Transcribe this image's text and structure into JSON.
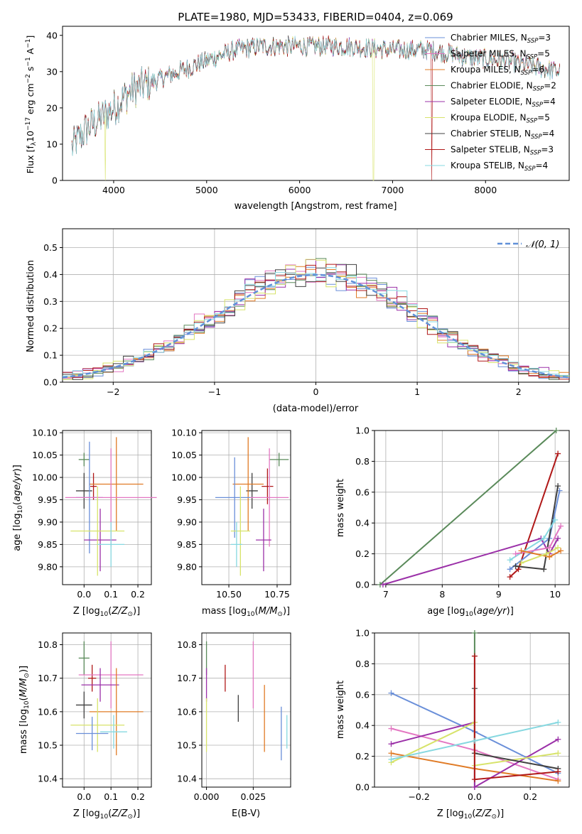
{
  "figure": {
    "title": "PLATE=1980, MJD=53433, FIBERID=0404, z=0.069"
  },
  "colors": {
    "chabrier_miles": "#6a8fd9",
    "salpeter_miles": "#e377c2",
    "kroupa_miles": "#e07b26",
    "chabrier_elodie": "#5a8a5a",
    "salpeter_elodie": "#9b30a8",
    "kroupa_elodie": "#d7e36a",
    "chabrier_stelib": "#404040",
    "salpeter_stelib": "#b01818",
    "kroupa_stelib": "#86d8e0",
    "normal": "#6090d8"
  },
  "chart_data": [
    {
      "id": "spectrum",
      "type": "line",
      "title": "PLATE=1980, MJD=53433, FIBERID=0404, z=0.069",
      "xlabel": "wavelength [Angstrom, rest frame]",
      "ylabel": "Flux [f_λ10^-17 erg cm^-2 s^-1 A^-1]",
      "xlim": [
        3450,
        8900
      ],
      "ylim": [
        0,
        42.5
      ],
      "xticks": [
        4000,
        5000,
        6000,
        7000,
        8000
      ],
      "yticks": [
        0,
        10,
        20,
        30,
        40
      ],
      "legend": "top-right",
      "continuum_x": [
        3550,
        3700,
        3900,
        4000,
        4200,
        4500,
        5000,
        5300,
        5600,
        6000,
        6500,
        7000,
        7400,
        7800,
        8200,
        8600,
        8800
      ],
      "continuum_y": [
        9,
        14,
        18,
        20,
        25,
        28,
        33,
        36,
        37,
        37,
        37,
        36,
        36,
        34,
        33,
        31,
        30
      ],
      "series": [
        {
          "name": "Chabrier MILES, N_SSP=3",
          "key": "chabrier_miles"
        },
        {
          "name": "Salpeter MILES, N_SSP=5",
          "key": "salpeter_miles"
        },
        {
          "name": "Kroupa MILES, N_SSP=6",
          "key": "kroupa_miles"
        },
        {
          "name": "Chabrier ELODIE, N_SSP=2",
          "key": "chabrier_elodie"
        },
        {
          "name": "Salpeter ELODIE, N_SSP=4",
          "key": "salpeter_elodie"
        },
        {
          "name": "Kroupa ELODIE, N_SSP=5",
          "key": "kroupa_elodie"
        },
        {
          "name": "Chabrier STELIB, N_SSP=4",
          "key": "chabrier_stelib"
        },
        {
          "name": "Salpeter STELIB, N_SSP=3",
          "key": "salpeter_stelib"
        },
        {
          "name": "Kroupa STELIB, N_SSP=4",
          "key": "kroupa_stelib"
        }
      ]
    },
    {
      "id": "residuals",
      "type": "line",
      "xlabel": "(data-model)/error",
      "ylabel": "Normed distribution",
      "xlim": [
        -2.5,
        2.5
      ],
      "ylim": [
        0,
        0.57
      ],
      "xticks": [
        -2,
        -1,
        0,
        1,
        2
      ],
      "yticks": [
        0.0,
        0.1,
        0.2,
        0.3,
        0.4,
        0.5
      ],
      "xticklabels": [
        "−2",
        "−1",
        "0",
        "1",
        "2"
      ],
      "legend": "top-right",
      "legend_label": "𝒩(0, 1)",
      "bin_width": 0.1
    },
    {
      "id": "age_z",
      "type": "scatter",
      "xlabel": "Z [log10(Z/Z⊙)]",
      "ylabel": "age  [log10(age/yr)]",
      "xlim": [
        -0.08,
        0.25
      ],
      "ylim": [
        9.76,
        10.105
      ],
      "xticks": [
        0.0,
        0.1,
        0.2
      ],
      "yticks": [
        9.8,
        9.85,
        9.9,
        9.95,
        10.0,
        10.05,
        10.1
      ],
      "points": [
        {
          "key": "chabrier_elodie",
          "x": 0.0,
          "xerr": 0.02,
          "y": 10.04,
          "yerr": 0.015
        },
        {
          "key": "chabrier_stelib",
          "x": 0.0,
          "xerr": 0.03,
          "y": 9.97,
          "yerr": 0.04
        },
        {
          "key": "salpeter_stelib",
          "x": 0.035,
          "xerr": 0.012,
          "y": 9.98,
          "yerr": 0.03
        },
        {
          "key": "kroupa_miles",
          "x": 0.12,
          "xerr": 0.1,
          "y": 9.985,
          "yerr": 0.105
        },
        {
          "key": "chabrier_miles",
          "x": 0.02,
          "xerr": 0.05,
          "y": 9.955,
          "yerr": 0.125
        },
        {
          "key": "salpeter_miles",
          "x": 0.1,
          "xerr": 0.17,
          "y": 9.955,
          "yerr": 0.11
        },
        {
          "key": "salpeter_elodie",
          "x": 0.06,
          "xerr": 0.06,
          "y": 9.86,
          "yerr": 0.07
        },
        {
          "key": "kroupa_elodie",
          "x": 0.05,
          "xerr": 0.1,
          "y": 9.88,
          "yerr": 0.1
        },
        {
          "key": "kroupa_stelib",
          "x": 0.1,
          "xerr": 0.05,
          "y": 9.85,
          "yerr": 0.05
        }
      ]
    },
    {
      "id": "age_mass",
      "type": "scatter",
      "xlabel": "mass [log10(M/M⊙)]",
      "ylabel": "",
      "xlim": [
        10.36,
        10.82
      ],
      "ylim": [
        9.76,
        10.105
      ],
      "xticks": [
        10.5,
        10.6,
        10.7
      ],
      "xticklabels": [
        "10.50",
        "10.75"
      ],
      "xtick_vals": [
        10.5,
        10.75
      ],
      "yticks": [
        9.8,
        9.85,
        9.9,
        9.95,
        10.0,
        10.05,
        10.1
      ],
      "points": [
        {
          "key": "chabrier_elodie",
          "x": 10.76,
          "xerr": 0.05,
          "y": 10.04,
          "yerr": 0.015
        },
        {
          "key": "chabrier_stelib",
          "x": 10.62,
          "xerr": 0.03,
          "y": 9.97,
          "yerr": 0.04
        },
        {
          "key": "salpeter_stelib",
          "x": 10.7,
          "xerr": 0.03,
          "y": 9.98,
          "yerr": 0.04
        },
        {
          "key": "kroupa_miles",
          "x": 10.6,
          "xerr": 0.08,
          "y": 9.985,
          "yerr": 0.105
        },
        {
          "key": "chabrier_miles",
          "x": 10.53,
          "xerr": 0.1,
          "y": 9.955,
          "yerr": 0.09
        },
        {
          "key": "salpeter_miles",
          "x": 10.71,
          "xerr": 0.1,
          "y": 9.955,
          "yerr": 0.11
        },
        {
          "key": "salpeter_elodie",
          "x": 10.68,
          "xerr": 0.04,
          "y": 9.86,
          "yerr": 0.07
        },
        {
          "key": "kroupa_elodie",
          "x": 10.56,
          "xerr": 0.05,
          "y": 9.88,
          "yerr": 0.1
        },
        {
          "key": "kroupa_stelib",
          "x": 10.54,
          "xerr": 0.03,
          "y": 9.85,
          "yerr": 0.05
        }
      ]
    },
    {
      "id": "weight_age",
      "type": "line",
      "xlabel": "age  [log10(age/yr)]",
      "ylabel": "mass weight",
      "xlim": [
        6.8,
        10.25
      ],
      "ylim": [
        0,
        1.0
      ],
      "xticks": [
        7,
        8,
        9,
        10
      ],
      "yticks": [
        0.0,
        0.2,
        0.4,
        0.6,
        0.8,
        1.0
      ],
      "series": [
        {
          "key": "chabrier_elodie",
          "x": [
            6.9,
            10.02
          ],
          "y": [
            0.0,
            1.0
          ]
        },
        {
          "key": "salpeter_stelib",
          "x": [
            9.2,
            9.35,
            10.05
          ],
          "y": [
            0.05,
            0.1,
            0.85
          ]
        },
        {
          "key": "salpeter_elodie",
          "x": [
            6.95,
            9.75,
            9.9,
            10.05
          ],
          "y": [
            0.0,
            0.3,
            0.2,
            0.3
          ]
        },
        {
          "key": "chabrier_miles",
          "x": [
            9.2,
            9.9,
            10.08
          ],
          "y": [
            0.1,
            0.3,
            0.61
          ]
        },
        {
          "key": "chabrier_stelib",
          "x": [
            9.3,
            9.8,
            10.05
          ],
          "y": [
            0.12,
            0.1,
            0.64
          ]
        },
        {
          "key": "kroupa_stelib",
          "x": [
            9.2,
            9.8,
            10.0
          ],
          "y": [
            0.16,
            0.3,
            0.42
          ]
        },
        {
          "key": "salpeter_miles",
          "x": [
            9.3,
            9.9,
            10.1
          ],
          "y": [
            0.2,
            0.24,
            0.38
          ]
        },
        {
          "key": "kroupa_miles",
          "x": [
            9.4,
            9.9,
            10.1
          ],
          "y": [
            0.22,
            0.18,
            0.22
          ]
        },
        {
          "key": "kroupa_elodie",
          "x": [
            9.4,
            9.85,
            10.05
          ],
          "y": [
            0.14,
            0.2,
            0.24
          ]
        }
      ]
    },
    {
      "id": "mass_z",
      "type": "scatter",
      "xlabel": "Z [log10(Z/Z⊙)]",
      "ylabel": "mass [log10(M/M⊙)]",
      "xlim": [
        -0.08,
        0.25
      ],
      "ylim": [
        10.375,
        10.835
      ],
      "xticks": [
        0.0,
        0.1,
        0.2
      ],
      "yticks": [
        10.4,
        10.5,
        10.6,
        10.7,
        10.8
      ],
      "points": [
        {
          "key": "chabrier_elodie",
          "x": 0.0,
          "xerr": 0.02,
          "y": 10.76,
          "yerr": 0.05
        },
        {
          "key": "salpeter_stelib",
          "x": 0.03,
          "xerr": 0.015,
          "y": 10.7,
          "yerr": 0.04
        },
        {
          "key": "salpeter_miles",
          "x": 0.1,
          "xerr": 0.12,
          "y": 10.71,
          "yerr": 0.1
        },
        {
          "key": "salpeter_elodie",
          "x": 0.06,
          "xerr": 0.07,
          "y": 10.68,
          "yerr": 0.05
        },
        {
          "key": "chabrier_stelib",
          "x": 0.0,
          "xerr": 0.03,
          "y": 10.62,
          "yerr": 0.04
        },
        {
          "key": "kroupa_miles",
          "x": 0.12,
          "xerr": 0.1,
          "y": 10.6,
          "yerr": 0.13
        },
        {
          "key": "kroupa_elodie",
          "x": 0.05,
          "xerr": 0.1,
          "y": 10.56,
          "yerr": 0.08
        },
        {
          "key": "kroupa_stelib",
          "x": 0.11,
          "xerr": 0.05,
          "y": 10.54,
          "yerr": 0.05
        },
        {
          "key": "chabrier_miles",
          "x": 0.03,
          "xerr": 0.06,
          "y": 10.535,
          "yerr": 0.05
        }
      ]
    },
    {
      "id": "mass_ebv",
      "type": "scatter",
      "xlabel": "E(B-V)",
      "ylabel": "",
      "xlim": [
        -0.0025,
        0.045
      ],
      "ylim": [
        10.375,
        10.835
      ],
      "xticks": [
        0.0,
        0.025
      ],
      "xticklabels": [
        "0.000",
        "0.025"
      ],
      "yticks": [
        10.4,
        10.5,
        10.6,
        10.7,
        10.8
      ],
      "points": [
        {
          "key": "chabrier_elodie",
          "x": 0.0,
          "y": 10.76,
          "yerr": 0.05
        },
        {
          "key": "salpeter_elodie",
          "x": 0.0,
          "y": 10.68,
          "yerr": 0.05
        },
        {
          "key": "kroupa_elodie",
          "x": 0.0,
          "y": 10.56,
          "yerr": 0.08
        },
        {
          "key": "salpeter_stelib",
          "x": 0.01,
          "y": 10.7,
          "yerr": 0.04
        },
        {
          "key": "chabrier_stelib",
          "x": 0.017,
          "y": 10.61,
          "yerr": 0.04
        },
        {
          "key": "salpeter_miles",
          "x": 0.025,
          "y": 10.71,
          "yerr": 0.1
        },
        {
          "key": "kroupa_miles",
          "x": 0.031,
          "y": 10.58,
          "yerr": 0.1
        },
        {
          "key": "chabrier_miles",
          "x": 0.04,
          "y": 10.535,
          "yerr": 0.08
        },
        {
          "key": "kroupa_stelib",
          "x": 0.043,
          "y": 10.54,
          "yerr": 0.05
        }
      ]
    },
    {
      "id": "weight_z",
      "type": "line",
      "xlabel": "Z [log10(Z/Z⊙)]",
      "ylabel": "mass weight",
      "xlim": [
        -0.36,
        0.34
      ],
      "ylim": [
        0,
        1.0
      ],
      "xticks": [
        -0.2,
        0.0,
        0.2
      ],
      "xticklabels": [
        "−0.2",
        "0.0",
        "0.2"
      ],
      "yticks": [
        0.0,
        0.2,
        0.4,
        0.6,
        0.8,
        1.0
      ],
      "series": [
        {
          "key": "chabrier_miles",
          "x": [
            -0.3,
            0.0,
            0.3
          ],
          "y": [
            0.61,
            0.36,
            0.09
          ]
        },
        {
          "key": "salpeter_miles",
          "x": [
            -0.3,
            0.0,
            0.3
          ],
          "y": [
            0.38,
            0.24,
            0.05
          ]
        },
        {
          "key": "kroupa_miles",
          "x": [
            -0.3,
            0.0,
            0.3
          ],
          "y": [
            0.22,
            0.12,
            0.04
          ]
        },
        {
          "key": "chabrier_elodie",
          "x": [
            0.0,
            0.0
          ],
          "y": [
            0.0,
            1.0
          ]
        },
        {
          "key": "salpeter_elodie",
          "x": [
            -0.3,
            0.0,
            0.0,
            0.3
          ],
          "y": [
            0.28,
            0.42,
            0.0,
            0.31
          ]
        },
        {
          "key": "kroupa_elodie",
          "x": [
            -0.3,
            0.0,
            0.0,
            0.3
          ],
          "y": [
            0.16,
            0.42,
            0.14,
            0.22
          ]
        },
        {
          "key": "chabrier_stelib",
          "x": [
            0.0,
            0.0,
            0.3
          ],
          "y": [
            0.64,
            0.22,
            0.12
          ]
        },
        {
          "key": "salpeter_stelib",
          "x": [
            0.0,
            0.0,
            0.3
          ],
          "y": [
            0.85,
            0.05,
            0.1
          ]
        },
        {
          "key": "kroupa_stelib",
          "x": [
            -0.3,
            0.0,
            0.3
          ],
          "y": [
            0.18,
            0.3,
            0.42
          ]
        }
      ]
    }
  ]
}
